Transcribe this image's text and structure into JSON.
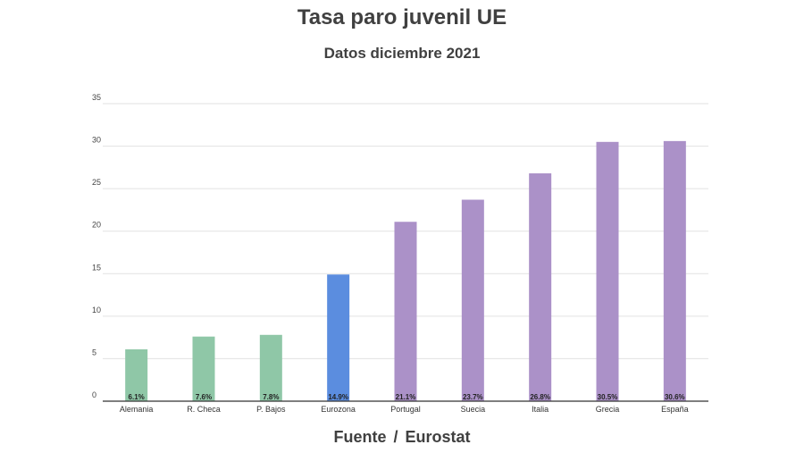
{
  "chart_data": {
    "type": "bar",
    "title": "Tasa paro juvenil UE",
    "subtitle": "Datos diciembre 2021",
    "source": "Fuente",
    "source_value": "Eurostat",
    "xlabel": "",
    "ylabel": "",
    "ylim": [
      0,
      35
    ],
    "yticks": [
      0,
      5,
      10,
      15,
      20,
      25,
      30,
      35
    ],
    "grid": true,
    "categories": [
      "Alemania",
      "R. Checa",
      "P. Bajos",
      "Eurozona",
      "Portugal",
      "Suecia",
      "Italia",
      "Grecia",
      "España"
    ],
    "values": [
      6.1,
      7.6,
      7.8,
      14.9,
      21.1,
      23.7,
      26.8,
      30.5,
      30.6
    ],
    "data_labels": [
      "6.1%",
      "7.6%",
      "7.8%",
      "14.9%",
      "21.1%",
      "23.7%",
      "26.8%",
      "30.5%",
      "30.6%"
    ],
    "colors": [
      "#8fc7a7",
      "#8fc7a7",
      "#8fc7a7",
      "#5b8ddf",
      "#ab91c8",
      "#ab91c8",
      "#ab91c8",
      "#ab91c8",
      "#ab91c8"
    ]
  }
}
